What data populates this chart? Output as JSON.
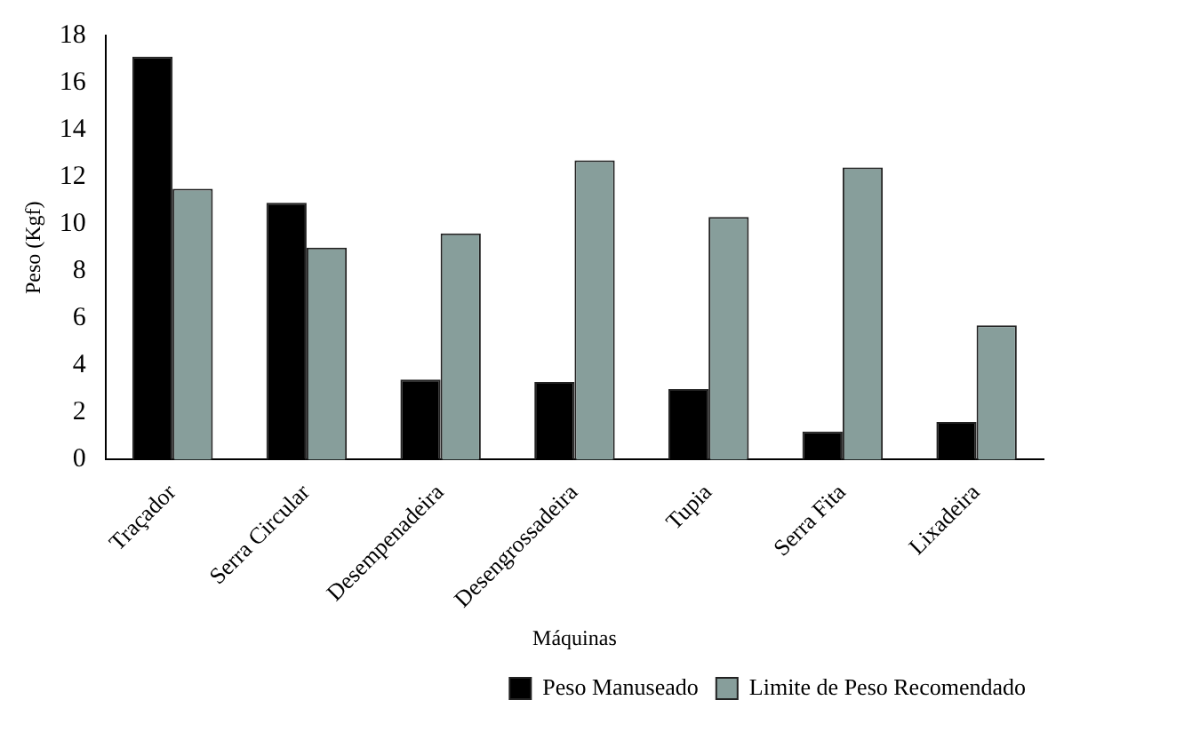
{
  "chart_data": {
    "type": "bar",
    "xlabel": "Máquinas",
    "ylabel": "Peso (Kgf)",
    "categories": [
      "Traçador",
      "Serra Circular",
      "Desempenadeira",
      "Desengrossadeira",
      "Tupia",
      "Serra Fita",
      "Lixadeira"
    ],
    "series": [
      {
        "name": "Peso Manuseado",
        "color": "#000000",
        "values": [
          17.1,
          10.9,
          3.4,
          3.3,
          3.0,
          1.2,
          1.6
        ]
      },
      {
        "name": "Limite de Peso Recomendado",
        "color": "#879e9b",
        "values": [
          11.5,
          9.0,
          9.6,
          12.7,
          10.3,
          12.4,
          5.7
        ]
      }
    ],
    "ylim": [
      0,
      18
    ],
    "yticks": [
      0,
      2,
      4,
      6,
      8,
      10,
      12,
      14,
      16,
      18
    ],
    "grid": false,
    "legend": "bottom right"
  }
}
